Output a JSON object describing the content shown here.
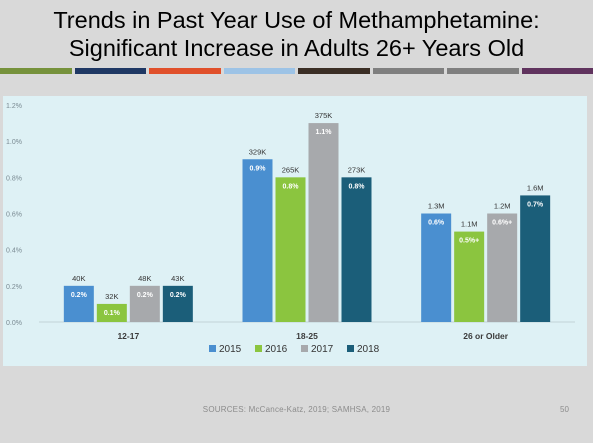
{
  "slide": {
    "title_lines": [
      "Trends in Past Year Use of Methamphetamine:",
      "Significant Increase in Adults 26+ Years Old"
    ],
    "source": "SOURCES: McCance-Katz, 2019; SAMHSA, 2019",
    "page_number": "50"
  },
  "color_strip": [
    "#76923c",
    "#1f3864",
    "#e0502b",
    "#9dc3e6",
    "#3b2e25",
    "#7f7f7f",
    "#7f7f7f",
    "#60335e"
  ],
  "chart_data": {
    "type": "bar",
    "title": "",
    "xlabel": "",
    "ylabel": "",
    "ylim": [
      0,
      1.2
    ],
    "y_ticks": [
      "0.0%",
      "0.2%",
      "0.4%",
      "0.6%",
      "0.8%",
      "1.0%",
      "1.2%"
    ],
    "y_tick_values": [
      0,
      0.2,
      0.4,
      0.6,
      0.8,
      1.0,
      1.2
    ],
    "categories": [
      "12-17",
      "18-25",
      "26 or Older"
    ],
    "grid": false,
    "legend_position": "bottom",
    "background": "#def1f5",
    "series": [
      {
        "name": "2015",
        "color": "#4a8fd0",
        "values": [
          0.2,
          0.9,
          0.6
        ],
        "inside_labels": [
          "0.2%",
          "0.9%",
          "0.6%"
        ],
        "top_labels": [
          "40K",
          "329K",
          "1.3M"
        ]
      },
      {
        "name": "2016",
        "color": "#8bc53f",
        "values": [
          0.1,
          0.8,
          0.5
        ],
        "inside_labels": [
          "0.1%",
          "0.8%",
          "0.5%+"
        ],
        "top_labels": [
          "32K",
          "265K",
          "1.1M"
        ]
      },
      {
        "name": "2017",
        "color": "#a7a9ac",
        "values": [
          0.2,
          1.1,
          0.6
        ],
        "inside_labels": [
          "0.2%",
          "1.1%",
          "0.6%+"
        ],
        "top_labels": [
          "48K",
          "375K",
          "1.2M"
        ]
      },
      {
        "name": "2018",
        "color": "#1b5e79",
        "values": [
          0.2,
          0.8,
          0.7
        ],
        "inside_labels": [
          "0.2%",
          "0.8%",
          "0.7%"
        ],
        "top_labels": [
          "43K",
          "273K",
          "1.6M"
        ]
      }
    ]
  }
}
